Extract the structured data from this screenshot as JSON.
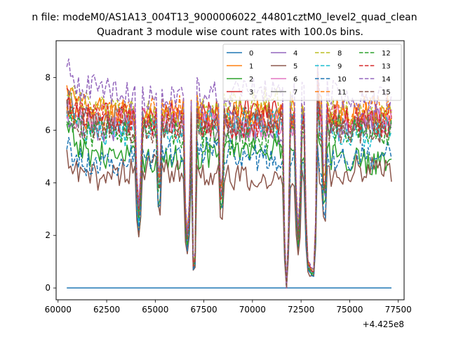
{
  "chart_data": {
    "type": "line",
    "suptitle": "n file: modeM0/AS1A13_004T13_9000006022_44801cztM0_level2_quad_clean",
    "title": "Quadrant 3 module wise count rates with 100.0s bins.",
    "xlabel": "",
    "ylabel": "",
    "x_offset_label": "+4.425e8",
    "x_offset": 442500000,
    "xlim": [
      59900,
      77800
    ],
    "ylim": [
      -0.45,
      9.4
    ],
    "xticks": [
      60000,
      62500,
      65000,
      67500,
      70000,
      72500,
      75000,
      77500
    ],
    "xtick_labels": [
      "60000",
      "62500",
      "65000",
      "67500",
      "70000",
      "72500",
      "75000",
      "77500"
    ],
    "yticks": [
      0,
      2,
      4,
      6,
      8
    ],
    "ytick_labels": [
      "0",
      "2",
      "4",
      "6",
      "8"
    ],
    "grid": false,
    "legend_position": "top-right",
    "legend_columns": 4,
    "x_start": 60450,
    "x_end": 77200,
    "bin": 100,
    "dropouts": [
      {
        "center": 64150,
        "depth": 0.55,
        "halfwidth": 100
      },
      {
        "center": 65200,
        "depth": 0.4,
        "halfwidth": 100
      },
      {
        "center": 66650,
        "depth": 0.7,
        "halfwidth": 150
      },
      {
        "center": 67000,
        "depth": 1.0,
        "halfwidth": 120
      },
      {
        "center": 68400,
        "depth": 0.5,
        "halfwidth": 100
      },
      {
        "center": 71750,
        "depth": 1.0,
        "halfwidth": 100
      },
      {
        "center": 72350,
        "depth": 0.7,
        "halfwidth": 100
      },
      {
        "center": 72850,
        "depth": 0.85,
        "halfwidth": 100
      },
      {
        "center": 73100,
        "depth": 1.0,
        "halfwidth": 150
      },
      {
        "center": 73700,
        "depth": 0.45,
        "halfwidth": 100
      }
    ],
    "spikes": [
      {
        "center": 67050,
        "height": 3.0,
        "halfwidth": 150
      },
      {
        "center": 73300,
        "height": 2.5,
        "halfwidth": 100
      }
    ],
    "series": [
      {
        "name": "0",
        "color": "#1f77b4",
        "dash": "solid",
        "base": 0.0
      },
      {
        "name": "1",
        "color": "#ff7f0e",
        "dash": "solid",
        "base": 6.6
      },
      {
        "name": "2",
        "color": "#2ca02c",
        "dash": "solid",
        "base": 5.1
      },
      {
        "name": "3",
        "color": "#d62728",
        "dash": "solid",
        "base": 6.6
      },
      {
        "name": "4",
        "color": "#9467bd",
        "dash": "solid",
        "base": 6.2
      },
      {
        "name": "5",
        "color": "#8c564b",
        "dash": "solid",
        "base": 4.3
      },
      {
        "name": "6",
        "color": "#e377c2",
        "dash": "solid",
        "base": 6.3
      },
      {
        "name": "7",
        "color": "#7f7f7f",
        "dash": "solid",
        "base": 6.2
      },
      {
        "name": "8",
        "color": "#bcbd22",
        "dash": "dashed",
        "base": 6.8
      },
      {
        "name": "9",
        "color": "#17becf",
        "dash": "dashed",
        "base": 6.1
      },
      {
        "name": "10",
        "color": "#1f77b4",
        "dash": "dashed",
        "base": 5.0
      },
      {
        "name": "11",
        "color": "#ff7f0e",
        "dash": "dashed",
        "base": 6.6
      },
      {
        "name": "12",
        "color": "#2ca02c",
        "dash": "dashed",
        "base": 5.8
      },
      {
        "name": "13",
        "color": "#d62728",
        "dash": "dashed",
        "base": 6.3
      },
      {
        "name": "14",
        "color": "#9467bd",
        "dash": "dashed",
        "base": 7.4
      },
      {
        "name": "15",
        "color": "#8c564b",
        "dash": "dashed",
        "base": 6.2
      }
    ]
  }
}
